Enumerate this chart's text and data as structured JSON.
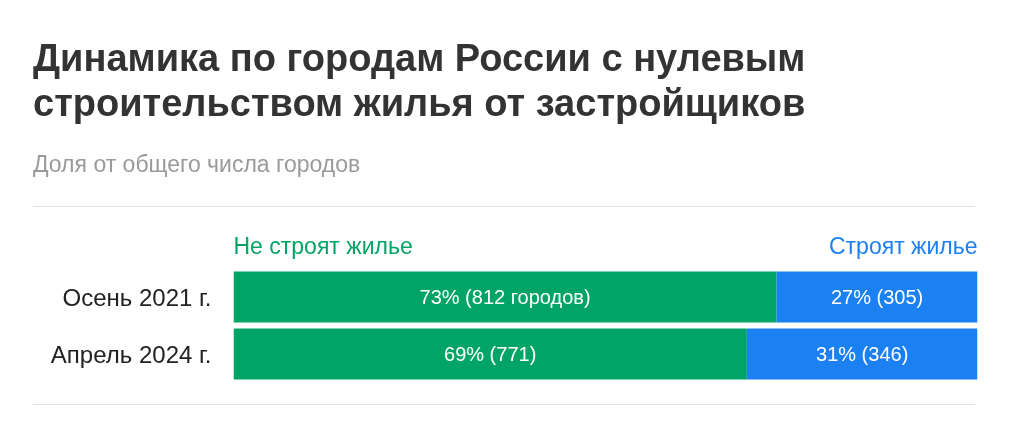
{
  "chart_data": {
    "type": "bar",
    "orientation": "horizontal",
    "stacked": true,
    "title": "Динамика по городам России с нулевым строительством жилья от застройщиков",
    "subtitle": "Доля от общего числа городов",
    "categories": [
      "Осень 2021 г.",
      "Апрель 2024 г."
    ],
    "series": [
      {
        "name": "Не строят жилье",
        "color": "#00a566",
        "values": [
          73,
          69
        ],
        "value_labels": [
          "73% (812 городов)",
          "69% (771)"
        ]
      },
      {
        "name": "Строят жилье",
        "color": "#1b80f2",
        "values": [
          27,
          31
        ],
        "value_labels": [
          "27% (305)",
          "31% (346)"
        ]
      }
    ],
    "xlim": [
      0,
      100
    ],
    "legend": "top",
    "tick_labels": "y"
  }
}
